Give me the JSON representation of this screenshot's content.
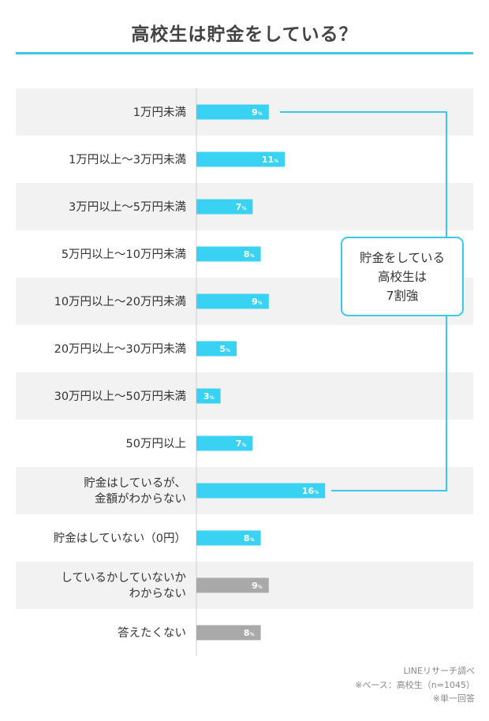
{
  "title": "高校生は貯金をしている？",
  "chart_data": {
    "type": "bar",
    "orientation": "horizontal",
    "unit": "%",
    "xlim": [
      0,
      100
    ],
    "categories": [
      [
        "1万円未満"
      ],
      [
        "1万円以上〜3万円未満"
      ],
      [
        "3万円以上〜5万円未満"
      ],
      [
        "5万円以上〜10万円未満"
      ],
      [
        "10万円以上〜20万円未満"
      ],
      [
        "20万円以上〜30万円未満"
      ],
      [
        "30万円以上〜50万円未満"
      ],
      [
        "50万円以上"
      ],
      [
        "貯金はしているが、",
        "金額がわからない"
      ],
      [
        "貯金はしていない（0円）"
      ],
      [
        "しているかしていないか",
        "わからない"
      ],
      [
        "答えたくない"
      ]
    ],
    "values": [
      9,
      11,
      7,
      8,
      9,
      5,
      3,
      7,
      16,
      8,
      9,
      8
    ],
    "highlight": [
      true,
      true,
      true,
      true,
      true,
      true,
      true,
      true,
      true,
      true,
      false,
      false
    ],
    "colors": {
      "highlight": "#3ad2f2",
      "other": "#a9a9a9",
      "band": "#f2f2f2",
      "accent": "#3cc8e6"
    }
  },
  "callout": {
    "lines": [
      "貯金をしている",
      "高校生は",
      "7割強"
    ]
  },
  "footnotes": {
    "source": "LINEリサーチ調べ",
    "base": "※ベース：高校生（n=1045）",
    "answer": "※単一回答"
  }
}
